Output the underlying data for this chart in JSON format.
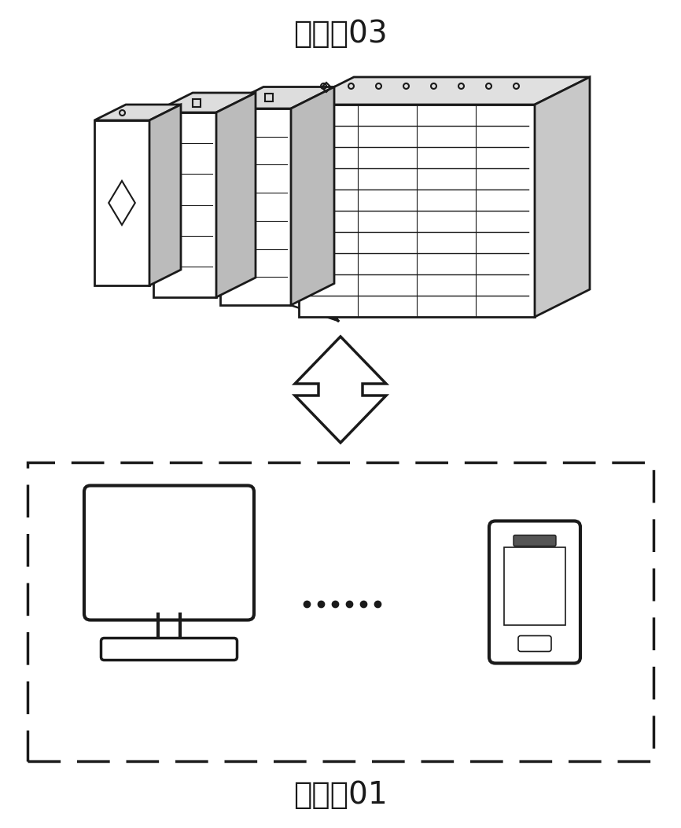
{
  "title_top": "服务器03",
  "title_bottom": "客户端01",
  "title_fontsize": 24,
  "bg_color": "#ffffff",
  "line_color": "#1a1a1a",
  "dots_text": "......",
  "fig_width": 8.66,
  "fig_height": 10.53
}
